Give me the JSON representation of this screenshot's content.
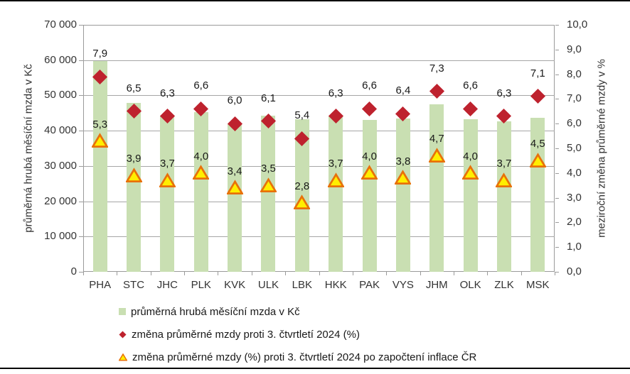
{
  "chart_data": {
    "type": "combo (bar + scatter markers)",
    "categories": [
      "PHA",
      "STC",
      "JHC",
      "PLK",
      "KVK",
      "ULK",
      "LBK",
      "HKK",
      "PAK",
      "VYS",
      "JHM",
      "OLK",
      "ZLK",
      "MSK"
    ],
    "series": [
      {
        "name": "průměrná hrubá měsíční mzda v Kč",
        "type": "bar",
        "axis": "left",
        "color": "#c9dfb2",
        "values": [
          59700,
          47900,
          44200,
          45200,
          42000,
          44200,
          43200,
          44200,
          43000,
          43500,
          47500,
          43200,
          42700,
          43700
        ]
      },
      {
        "name": "změna průměrné mzdy proti 3. čtvrtletí 2024 (%)",
        "type": "scatter",
        "marker": "diamond",
        "axis": "right",
        "color": "#be222e",
        "values": [
          7.9,
          6.5,
          6.3,
          6.6,
          6.0,
          6.1,
          5.4,
          6.3,
          6.6,
          6.4,
          7.3,
          6.6,
          6.3,
          7.1
        ],
        "labels": [
          "7,9",
          "6,5",
          "6,3",
          "6,6",
          "6,0",
          "6,1",
          "5,4",
          "6,3",
          "6,6",
          "6,4",
          "7,3",
          "6,6",
          "6,3",
          "7,1"
        ]
      },
      {
        "name": "změna průměrné mzdy (%) proti 3. čtvrtletí 2024 po započtení inflace ČR",
        "type": "scatter",
        "marker": "triangle",
        "axis": "right",
        "color": "#ffee00",
        "border_color": "#e8710a",
        "values": [
          5.3,
          3.9,
          3.7,
          4.0,
          3.4,
          3.5,
          2.8,
          3.7,
          4.0,
          3.8,
          4.7,
          4.0,
          3.7,
          4.5
        ],
        "labels": [
          "5,3",
          "3,9",
          "3,7",
          "4,0",
          "3,4",
          "3,5",
          "2,8",
          "3,7",
          "4,0",
          "3,8",
          "4,7",
          "4,0",
          "3,7",
          "4,5"
        ]
      }
    ],
    "left_axis": {
      "title": "průměrná hrubá měsíční mzda v Kč",
      "min": 0,
      "max": 70000,
      "step": 10000,
      "tick_labels": [
        "0",
        "10 000",
        "20 000",
        "30 000",
        "40 000",
        "50 000",
        "60 000",
        "70 000"
      ]
    },
    "right_axis": {
      "title": "meziroční změna průměrné mzdy v %",
      "min": 0,
      "max": 10,
      "step": 1,
      "tick_labels": [
        "0,0",
        "1,0",
        "2,0",
        "3,0",
        "4,0",
        "5,0",
        "6,0",
        "7,0",
        "8,0",
        "9,0",
        "10,0"
      ]
    },
    "grid": {
      "horizontal": true,
      "vertical": false
    },
    "legend_position": "bottom-left",
    "colors": {
      "bar": "#c9dfb2",
      "diamond": "#be222e",
      "triangle_fill": "#ffee00",
      "triangle_border": "#e8710a",
      "gridline": "#a6a6a6",
      "axis": "#9a9a9a",
      "text": "#333333"
    }
  }
}
